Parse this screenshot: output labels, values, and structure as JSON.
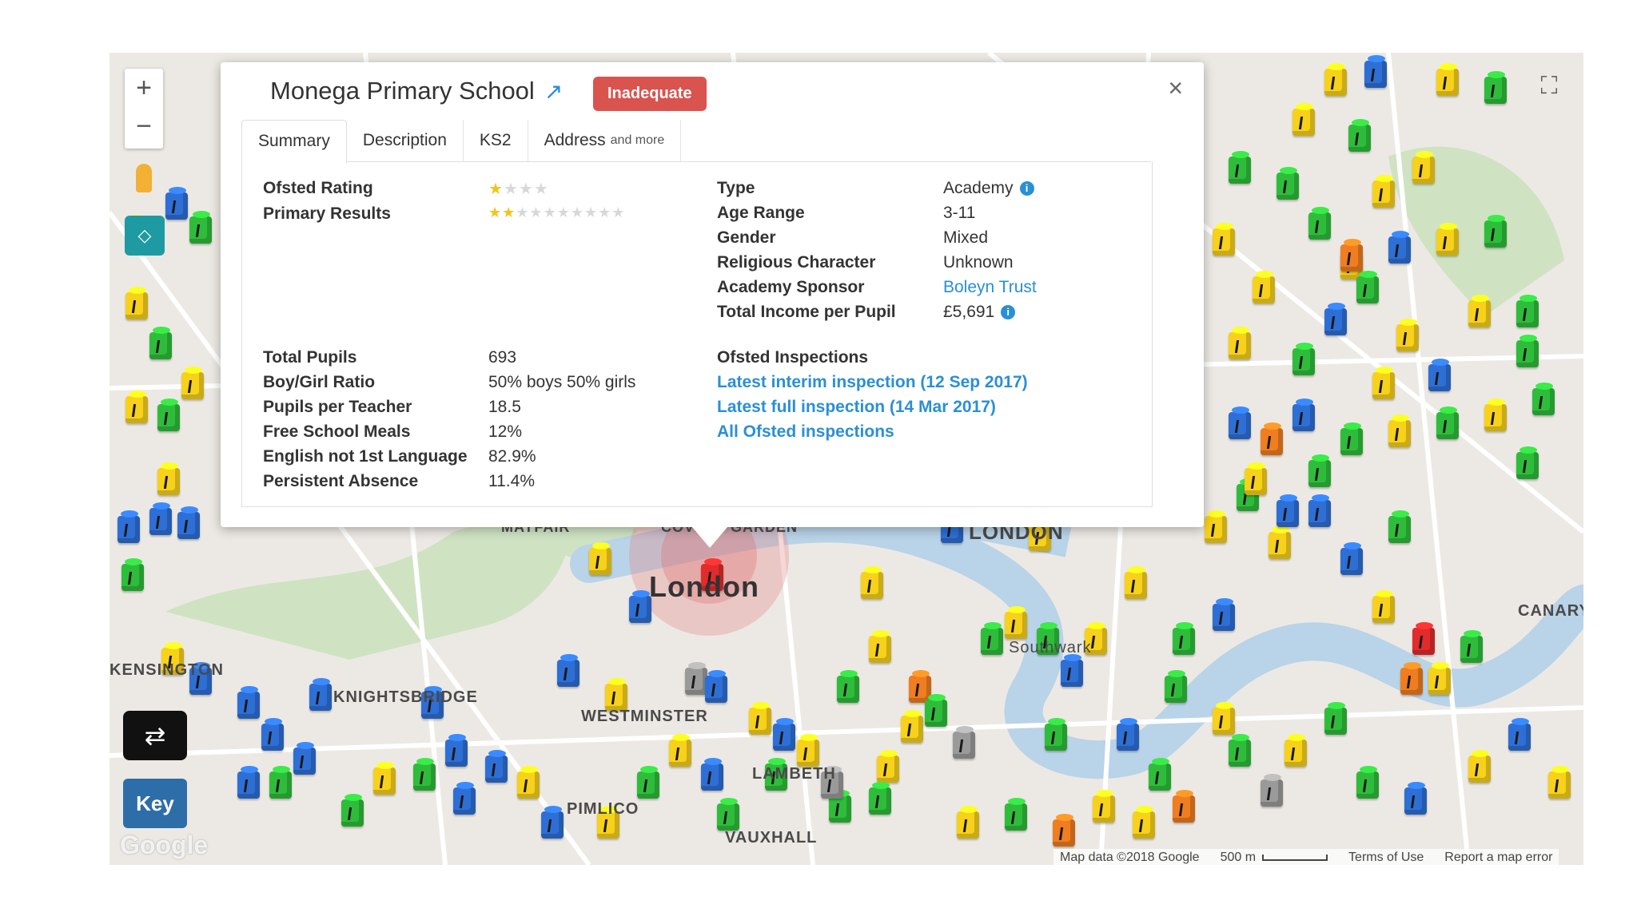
{
  "school": {
    "name": "Monega Primary School",
    "rating_badge": "Inadequate",
    "close_symbol": "×",
    "external_icon": "external-link-icon"
  },
  "tabs": [
    {
      "label": "Summary"
    },
    {
      "label": "Description"
    },
    {
      "label": "KS2"
    },
    {
      "label": "Address",
      "sub": "and more"
    }
  ],
  "summary": {
    "ofsted_rating_label": "Ofsted Rating",
    "ofsted_rating_stars": 1,
    "ofsted_rating_max": 4,
    "primary_results_label": "Primary Results",
    "primary_results_stars": 2,
    "primary_results_max": 10,
    "details": {
      "type_label": "Type",
      "type_value": "Academy",
      "age_label": "Age Range",
      "age_value": "3-11",
      "gender_label": "Gender",
      "gender_value": "Mixed",
      "religion_label": "Religious Character",
      "religion_value": "Unknown",
      "sponsor_label": "Academy Sponsor",
      "sponsor_value": "Boleyn Trust",
      "income_label": "Total Income per Pupil",
      "income_value": "£5,691"
    },
    "stats": {
      "pupils_label": "Total Pupils",
      "pupils_value": "693",
      "ratio_label": "Boy/Girl Ratio",
      "ratio_value": "50% boys 50% girls",
      "teacher_label": "Pupils per Teacher",
      "teacher_value": "18.5",
      "meals_label": "Free School Meals",
      "meals_value": "12%",
      "english_label": "English not 1st Language",
      "english_value": "82.9%",
      "absence_label": "Persistent Absence",
      "absence_value": "11.4%"
    },
    "inspections": {
      "heading": "Ofsted Inspections",
      "interim": "Latest interim inspection (12 Sep 2017)",
      "full": "Latest full inspection (14 Mar 2017)",
      "all": "All Ofsted inspections"
    }
  },
  "map": {
    "labels": {
      "london_center": "London",
      "london_city": "LONDON",
      "mayfair": "MAYFAIR",
      "covent": "COVENT GARDEN",
      "kensington": "KENSINGTON",
      "knightsbridge": "KNIGHTSBRIDGE",
      "westminster": "WESTMINSTER",
      "lambeth": "LAMBETH",
      "pimlico": "PIMLICO",
      "vauxhall": "VAUXHALL",
      "southwark": "Southwark",
      "canary": "CANARY"
    },
    "controls": {
      "zoom_in": "+",
      "zoom_out": "−",
      "swap": "⇄",
      "key": "Key",
      "fullscreen": "⛶",
      "locate": "◇"
    },
    "attribution": {
      "map_data": "Map data ©2018 Google",
      "scale": "500 m",
      "terms": "Terms of Use",
      "report": "Report a map error",
      "google": "Google"
    },
    "colors": {
      "outstanding": "#2ebd3a",
      "good": "#f7d11a",
      "requires_improvement": "#f07d1f",
      "inadequate": "#e22b2b",
      "other": "#2e6fd6",
      "river": "#b9d3e8"
    }
  }
}
